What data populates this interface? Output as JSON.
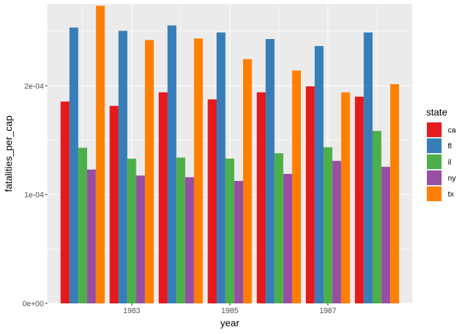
{
  "chart_data": {
    "type": "bar",
    "xlabel": "year",
    "ylabel": "fatalities_per_cap",
    "x": [
      1982,
      1983,
      1984,
      1985,
      1986,
      1987,
      1988
    ],
    "x_ticks": [
      "1983",
      "1985",
      "1987"
    ],
    "y_ticks": [
      "0e+00",
      "1e-04",
      "2e-04"
    ],
    "ylim": [
      0,
      0.000275
    ],
    "xlim": [
      1981.28,
      1988.72
    ],
    "grid": true,
    "legend": {
      "title": "state",
      "placement": "right"
    },
    "series": [
      {
        "name": "ca",
        "color": "#E41A1C",
        "values": [
          0.0001855,
          0.0001815,
          0.000194,
          0.0001875,
          0.000194,
          0.0001995,
          0.00019
        ]
      },
      {
        "name": "fl",
        "color": "#377EB8",
        "values": [
          0.0002535,
          0.0002505,
          0.0002555,
          0.000249,
          0.000243,
          0.0002365,
          0.000249
        ]
      },
      {
        "name": "il",
        "color": "#4DAF4A",
        "values": [
          0.000143,
          0.000133,
          0.000134,
          0.000133,
          0.000138,
          0.0001435,
          0.0001585
        ]
      },
      {
        "name": "ny",
        "color": "#984EA3",
        "values": [
          0.000123,
          0.0001175,
          0.000116,
          0.0001125,
          0.000119,
          0.000131,
          0.0001255
        ]
      },
      {
        "name": "tx",
        "color": "#FF7F00",
        "values": [
          0.0002735,
          0.000242,
          0.0002435,
          0.0002245,
          0.000214,
          0.000194,
          0.0002015
        ]
      }
    ]
  }
}
